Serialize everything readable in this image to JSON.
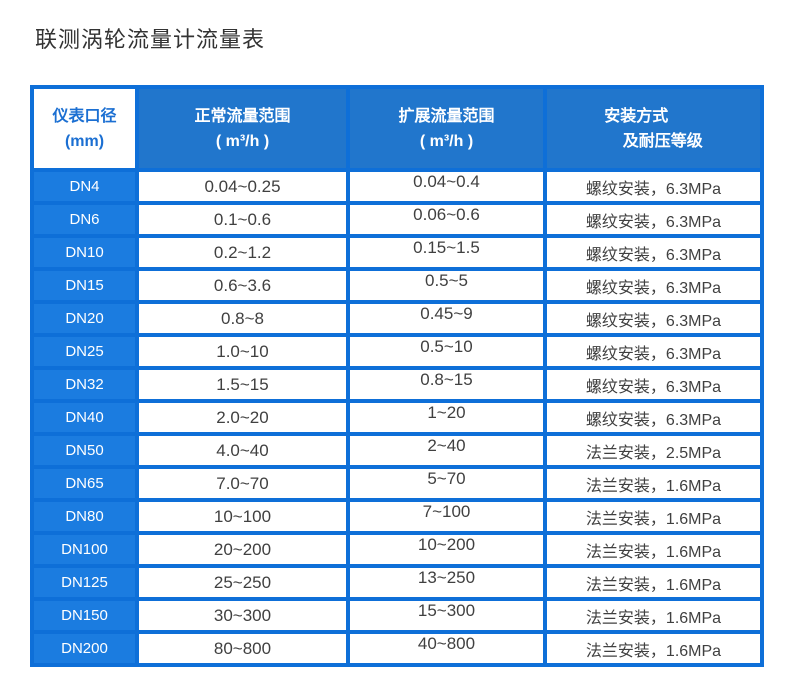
{
  "page": {
    "title": "联测涡轮流量计流量表"
  },
  "colors": {
    "header_blue": "#2176cc",
    "label_blue": "#1b7ce0",
    "border_blue": "#0e6fd8",
    "header_text": "#ffffff",
    "diameter_header_text": "#1b6fd2",
    "cell_text": "#404040",
    "title_text": "#333333"
  },
  "table": {
    "columns": [
      {
        "label_lines": [
          "仪表口径",
          "(mm)"
        ]
      },
      {
        "label_lines": [
          "正常流量范围",
          "( m³/h )"
        ]
      },
      {
        "label_lines": [
          "扩展流量范围",
          "( m³/h )"
        ]
      },
      {
        "label_lines": [
          "安装方式",
          "及耐压等级"
        ]
      }
    ],
    "rows": [
      {
        "dn": "DN4",
        "normal": "0.04~0.25",
        "extended": "0.04~0.4",
        "install": "螺纹安装，6.3MPa"
      },
      {
        "dn": "DN6",
        "normal": "0.1~0.6",
        "extended": "0.06~0.6",
        "install": "螺纹安装，6.3MPa"
      },
      {
        "dn": "DN10",
        "normal": "0.2~1.2",
        "extended": "0.15~1.5",
        "install": "螺纹安装，6.3MPa"
      },
      {
        "dn": "DN15",
        "normal": "0.6~3.6",
        "extended": "0.5~5",
        "install": "螺纹安装，6.3MPa"
      },
      {
        "dn": "DN20",
        "normal": "0.8~8",
        "extended": "0.45~9",
        "install": "螺纹安装，6.3MPa"
      },
      {
        "dn": "DN25",
        "normal": "1.0~10",
        "extended": "0.5~10",
        "install": "螺纹安装，6.3MPa"
      },
      {
        "dn": "DN32",
        "normal": "1.5~15",
        "extended": "0.8~15",
        "install": "螺纹安装，6.3MPa"
      },
      {
        "dn": "DN40",
        "normal": "2.0~20",
        "extended": "1~20",
        "install": "螺纹安装，6.3MPa"
      },
      {
        "dn": "DN50",
        "normal": "4.0~40",
        "extended": "2~40",
        "install": "法兰安装，2.5MPa"
      },
      {
        "dn": "DN65",
        "normal": "7.0~70",
        "extended": "5~70",
        "install": "法兰安装，1.6MPa"
      },
      {
        "dn": "DN80",
        "normal": "10~100",
        "extended": "7~100",
        "install": "法兰安装，1.6MPa"
      },
      {
        "dn": "DN100",
        "normal": "20~200",
        "extended": "10~200",
        "install": "法兰安装，1.6MPa"
      },
      {
        "dn": "DN125",
        "normal": "25~250",
        "extended": "13~250",
        "install": "法兰安装，1.6MPa"
      },
      {
        "dn": "DN150",
        "normal": "30~300",
        "extended": "15~300",
        "install": "法兰安装，1.6MPa"
      },
      {
        "dn": "DN200",
        "normal": "80~800",
        "extended": "40~800",
        "install": "法兰安装，1.6MPa"
      }
    ]
  }
}
